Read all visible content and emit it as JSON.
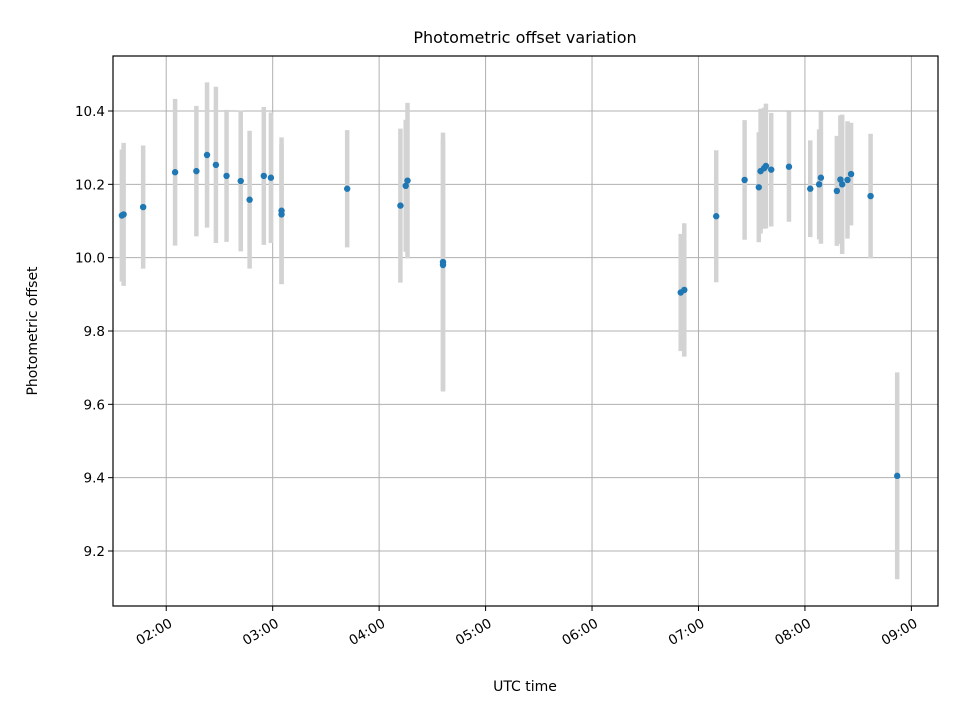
{
  "chart_data": {
    "type": "scatter",
    "title": "Photometric offset variation",
    "xlabel": "UTC time",
    "ylabel": "Photometric offset",
    "x_ticks": [
      "02:00",
      "03:00",
      "04:00",
      "05:00",
      "06:00",
      "07:00",
      "08:00",
      "09:00"
    ],
    "y_ticks": [
      "9.2",
      "9.4",
      "9.6",
      "9.8",
      "10.0",
      "10.2",
      "10.4"
    ],
    "xlim": [
      "01:30",
      "09:15"
    ],
    "ylim": [
      9.05,
      10.55
    ],
    "grid": true,
    "colors": {
      "points": "#1f77b4",
      "error_bars": "#d3d3d3",
      "grid": "#b0b0b0"
    },
    "points": [
      {
        "x": "01:35",
        "y": 10.115,
        "err": 0.18
      },
      {
        "x": "01:36",
        "y": 10.118,
        "err": 0.195
      },
      {
        "x": "01:47",
        "y": 10.138,
        "err": 0.168
      },
      {
        "x": "02:05",
        "y": 10.233,
        "err": 0.2
      },
      {
        "x": "02:17",
        "y": 10.236,
        "err": 0.178
      },
      {
        "x": "02:23",
        "y": 10.28,
        "err": 0.198
      },
      {
        "x": "02:28",
        "y": 10.253,
        "err": 0.213
      },
      {
        "x": "02:34",
        "y": 10.223,
        "err": 0.18
      },
      {
        "x": "02:42",
        "y": 10.209,
        "err": 0.192
      },
      {
        "x": "02:47",
        "y": 10.158,
        "err": 0.188
      },
      {
        "x": "02:55",
        "y": 10.223,
        "err": 0.188
      },
      {
        "x": "02:59",
        "y": 10.218,
        "err": 0.178
      },
      {
        "x": "03:05",
        "y": 10.128,
        "err": 0.2
      },
      {
        "x": "03:05",
        "y": 10.118,
        "err": 0.19
      },
      {
        "x": "03:42",
        "y": 10.188,
        "err": 0.16
      },
      {
        "x": "04:12",
        "y": 10.142,
        "err": 0.21
      },
      {
        "x": "04:15",
        "y": 10.196,
        "err": 0.18
      },
      {
        "x": "04:16",
        "y": 10.21,
        "err": 0.212
      },
      {
        "x": "04:36",
        "y": 9.988,
        "err": 0.353
      },
      {
        "x": "04:36",
        "y": 9.98,
        "err": 0.343
      },
      {
        "x": "06:50",
        "y": 9.905,
        "err": 0.16
      },
      {
        "x": "06:52",
        "y": 9.912,
        "err": 0.182
      },
      {
        "x": "07:10",
        "y": 10.113,
        "err": 0.18
      },
      {
        "x": "07:26",
        "y": 10.212,
        "err": 0.163
      },
      {
        "x": "07:34",
        "y": 10.192,
        "err": 0.15
      },
      {
        "x": "07:35",
        "y": 10.236,
        "err": 0.17
      },
      {
        "x": "07:37",
        "y": 10.244,
        "err": 0.165
      },
      {
        "x": "07:38",
        "y": 10.25,
        "err": 0.17
      },
      {
        "x": "07:41",
        "y": 10.24,
        "err": 0.155
      },
      {
        "x": "07:51",
        "y": 10.248,
        "err": 0.15
      },
      {
        "x": "08:03",
        "y": 10.188,
        "err": 0.132
      },
      {
        "x": "08:08",
        "y": 10.2,
        "err": 0.15
      },
      {
        "x": "08:09",
        "y": 10.218,
        "err": 0.18
      },
      {
        "x": "08:18",
        "y": 10.182,
        "err": 0.15
      },
      {
        "x": "08:20",
        "y": 10.213,
        "err": 0.175
      },
      {
        "x": "08:21",
        "y": 10.2,
        "err": 0.19
      },
      {
        "x": "08:24",
        "y": 10.212,
        "err": 0.16
      },
      {
        "x": "08:26",
        "y": 10.228,
        "err": 0.14
      },
      {
        "x": "08:37",
        "y": 10.168,
        "err": 0.17
      },
      {
        "x": "08:52",
        "y": 9.405,
        "err": 0.282
      }
    ]
  }
}
